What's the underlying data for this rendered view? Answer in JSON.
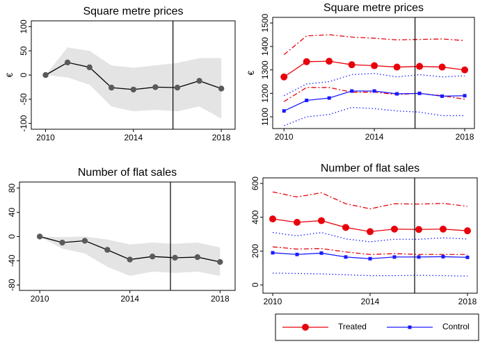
{
  "chart_data": [
    {
      "type": "line",
      "title": "Square metre prices",
      "ylabel": "€",
      "x": [
        2010,
        2011,
        2012,
        2013,
        2014,
        2015,
        2016,
        2017,
        2018
      ],
      "xlim": [
        2009.35,
        2018.63
      ],
      "xticks": [
        2010,
        2014,
        2018
      ],
      "ylim": [
        -112,
        112
      ],
      "yticks": [
        -100,
        -50,
        0,
        50,
        100
      ],
      "vline": 2015.8,
      "band": {
        "color": "#e4e4e4",
        "upper": [
          0,
          57,
          50,
          20,
          15,
          20,
          25,
          35,
          35
        ],
        "lower": [
          0,
          -5,
          -20,
          -65,
          -75,
          -72,
          -75,
          -65,
          -90
        ]
      },
      "series": [
        {
          "color": "#000000",
          "marker_color": "#5a5a5a",
          "marker": "circle",
          "style": "solid",
          "values": [
            0,
            26,
            16,
            -26,
            -30,
            -25,
            -26,
            -12,
            -28
          ]
        }
      ]
    },
    {
      "type": "line",
      "title": "Square metre prices",
      "ylabel": "€",
      "x": [
        2010,
        2011,
        2012,
        2013,
        2014,
        2015,
        2016,
        2017,
        2018
      ],
      "xlim": [
        2009.5,
        2018.43
      ],
      "xticks": [
        2010,
        2014,
        2018
      ],
      "ylim": [
        1050,
        1524
      ],
      "yticks": [
        1100,
        1200,
        1300,
        1400,
        1500
      ],
      "vline": 2015.8,
      "series": [
        {
          "color": "#e8000b",
          "marker": "circle",
          "style": "solid",
          "values": [
            1270,
            1335,
            1337,
            1322,
            1318,
            1312,
            1315,
            1312,
            1300
          ]
        },
        {
          "color": "#e8000b",
          "marker": "none",
          "style": "dashdot",
          "values": [
            1365,
            1445,
            1450,
            1440,
            1435,
            1428,
            1430,
            1432,
            1425
          ]
        },
        {
          "color": "#e8000b",
          "marker": "none",
          "style": "dashdot",
          "values": [
            1165,
            1225,
            1225,
            1205,
            1205,
            1195,
            1200,
            1190,
            1175
          ]
        },
        {
          "color": "#1a1aff",
          "marker": "x",
          "style": "solid",
          "values": [
            1125,
            1170,
            1180,
            1210,
            1210,
            1198,
            1200,
            1188,
            1190
          ]
        },
        {
          "color": "#1a1aff",
          "marker": "none",
          "style": "dot",
          "values": [
            1190,
            1240,
            1250,
            1280,
            1285,
            1270,
            1280,
            1270,
            1275
          ]
        },
        {
          "color": "#1a1aff",
          "marker": "none",
          "style": "dot",
          "values": [
            1062,
            1100,
            1110,
            1140,
            1135,
            1125,
            1120,
            1105,
            1105
          ]
        }
      ]
    },
    {
      "type": "line",
      "title": "Number of flat sales",
      "x": [
        2010,
        2011,
        2012,
        2013,
        2014,
        2015,
        2016,
        2017,
        2018
      ],
      "xlim": [
        2009.1,
        2018.67
      ],
      "xticks": [
        2010,
        2014,
        2018
      ],
      "ylim": [
        -89,
        90
      ],
      "yticks": [
        -80,
        -40,
        0,
        40,
        80
      ],
      "vline": 2015.8,
      "band": {
        "color": "#e4e4e4",
        "upper": [
          0,
          -1,
          0,
          -5,
          -13,
          -10,
          -12,
          -10,
          -18
        ],
        "lower": [
          0,
          -20,
          -28,
          -50,
          -65,
          -58,
          -60,
          -58,
          -65
        ]
      },
      "series": [
        {
          "color": "#000000",
          "marker_color": "#5a5a5a",
          "marker": "circle",
          "style": "solid",
          "values": [
            0,
            -10,
            -7,
            -22,
            -38,
            -33,
            -35,
            -34,
            -42
          ]
        }
      ]
    },
    {
      "type": "line",
      "title": "Number of flat sales",
      "x": [
        2010,
        2011,
        2012,
        2013,
        2014,
        2015,
        2016,
        2017,
        2018
      ],
      "xlim": [
        2009.6,
        2018.4
      ],
      "xticks": [
        2010,
        2014,
        2018
      ],
      "ylim": [
        -49,
        633
      ],
      "yticks": [
        0,
        200,
        400,
        600
      ],
      "vline": 2015.83,
      "series": [
        {
          "color": "#e8000b",
          "marker": "circle",
          "style": "solid",
          "values": [
            390,
            370,
            380,
            340,
            315,
            330,
            328,
            330,
            320
          ]
        },
        {
          "color": "#e8000b",
          "marker": "none",
          "style": "dashdot",
          "values": [
            550,
            520,
            545,
            480,
            450,
            480,
            478,
            482,
            465
          ]
        },
        {
          "color": "#e8000b",
          "marker": "none",
          "style": "dashdot",
          "values": [
            225,
            212,
            215,
            195,
            180,
            185,
            180,
            180,
            180
          ]
        },
        {
          "color": "#1a1aff",
          "marker": "x",
          "style": "solid",
          "values": [
            190,
            180,
            188,
            165,
            155,
            165,
            165,
            167,
            163
          ]
        },
        {
          "color": "#1a1aff",
          "marker": "none",
          "style": "dot",
          "values": [
            310,
            290,
            310,
            272,
            255,
            270,
            270,
            278,
            272
          ]
        },
        {
          "color": "#1a1aff",
          "marker": "none",
          "style": "dot",
          "values": [
            70,
            68,
            65,
            60,
            55,
            55,
            57,
            55,
            52
          ]
        }
      ]
    }
  ],
  "legend": [
    {
      "name": "Treated",
      "color": "#e8000b",
      "marker": "circle"
    },
    {
      "name": "Control",
      "color": "#1a1aff",
      "marker": "x"
    }
  ]
}
